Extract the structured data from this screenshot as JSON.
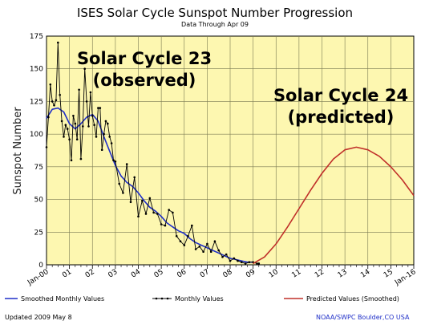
{
  "chart_data": {
    "type": "line",
    "title": "ISES Solar Cycle Sunspot Number Progression",
    "subtitle": "Data Through Apr 09",
    "ylabel": "Sunspot Number",
    "xlabel": "",
    "ylim": [
      0,
      175
    ],
    "yticks": [
      0,
      25,
      50,
      75,
      100,
      125,
      150,
      175
    ],
    "xticks": [
      "Jan-00",
      "01",
      "02",
      "03",
      "04",
      "05",
      "06",
      "07",
      "08",
      "09",
      "10",
      "11",
      "12",
      "13",
      "14",
      "15",
      "Jan-16"
    ],
    "grid": true,
    "background": "#fdf7b0",
    "annotations": [
      {
        "text": "Solar Cycle 23",
        "near_year": 2002.0
      },
      {
        "text": "(observed)",
        "near_year": 2002.0
      },
      {
        "text": "Solar Cycle 24",
        "near_year": 2013.0
      },
      {
        "text": "(predicted)",
        "near_year": 2013.0
      }
    ],
    "series": [
      {
        "name": "Smoothed Monthly Values",
        "color": "#1f2fc8",
        "x": [
          2000.0,
          2000.25,
          2000.5,
          2000.75,
          2001.0,
          2001.25,
          2001.5,
          2001.75,
          2002.0,
          2002.25,
          2002.5,
          2002.75,
          2003.0,
          2003.25,
          2003.5,
          2003.75,
          2004.0,
          2004.25,
          2004.5,
          2004.75,
          2005.0,
          2005.25,
          2005.5,
          2005.75,
          2006.0,
          2006.25,
          2006.5,
          2006.75,
          2007.0,
          2007.25,
          2007.5,
          2007.75,
          2008.0,
          2008.25,
          2008.5,
          2008.75,
          2009.0
        ],
        "y": [
          112,
          119,
          120,
          117,
          108,
          104,
          108,
          113,
          115,
          110,
          98,
          87,
          76,
          68,
          63,
          60,
          55,
          49,
          44,
          41,
          37,
          32,
          29,
          26,
          24,
          20,
          17,
          15,
          13,
          11,
          9,
          7,
          5,
          4,
          3,
          2,
          2
        ]
      },
      {
        "name": "Monthly Values",
        "color": "#000000",
        "x": [
          2000.0,
          2000.083,
          2000.167,
          2000.25,
          2000.333,
          2000.417,
          2000.5,
          2000.583,
          2000.667,
          2000.75,
          2000.833,
          2000.917,
          2001.0,
          2001.083,
          2001.167,
          2001.25,
          2001.333,
          2001.417,
          2001.5,
          2001.583,
          2001.667,
          2001.75,
          2001.833,
          2001.917,
          2002.0,
          2002.083,
          2002.167,
          2002.25,
          2002.333,
          2002.417,
          2002.5,
          2002.583,
          2002.667,
          2002.75,
          2002.833,
          2002.917,
          2003.0,
          2003.167,
          2003.333,
          2003.5,
          2003.667,
          2003.833,
          2004.0,
          2004.167,
          2004.333,
          2004.5,
          2004.667,
          2004.833,
          2005.0,
          2005.167,
          2005.333,
          2005.5,
          2005.667,
          2005.833,
          2006.0,
          2006.167,
          2006.333,
          2006.5,
          2006.667,
          2006.833,
          2007.0,
          2007.167,
          2007.333,
          2007.5,
          2007.667,
          2007.833,
          2008.0,
          2008.167,
          2008.333,
          2008.5,
          2008.667,
          2008.833,
          2009.0,
          2009.167,
          2009.25
        ],
        "y": [
          90,
          113,
          138,
          125,
          122,
          126,
          170,
          130,
          110,
          98,
          107,
          104,
          96,
          80,
          114,
          108,
          96,
          134,
          81,
          106,
          150,
          125,
          106,
          132,
          114,
          107,
          98,
          120,
          120,
          88,
          100,
          110,
          108,
          98,
          93,
          80,
          79,
          62,
          55,
          77,
          48,
          67,
          37,
          49,
          39,
          51,
          40,
          39,
          31,
          30,
          42,
          40,
          22,
          18,
          15,
          22,
          30,
          12,
          14,
          10,
          16,
          10,
          18,
          11,
          6,
          8,
          3,
          5,
          3,
          2,
          1,
          2,
          2,
          1,
          1
        ]
      },
      {
        "name": "Predicted Values (Smoothed)",
        "color": "#c0302a",
        "x": [
          2009.0,
          2009.5,
          2010.0,
          2010.5,
          2011.0,
          2011.5,
          2012.0,
          2012.5,
          2013.0,
          2013.5,
          2014.0,
          2014.5,
          2015.0,
          2015.5,
          2016.0
        ],
        "y": [
          1,
          6,
          16,
          29,
          43,
          57,
          70,
          81,
          88,
          90,
          88,
          83,
          75,
          65,
          53
        ]
      }
    ]
  },
  "footer": {
    "updated": "Updated 2009 May 8",
    "credit": "NOAA/SWPC Boulder,CO USA"
  }
}
